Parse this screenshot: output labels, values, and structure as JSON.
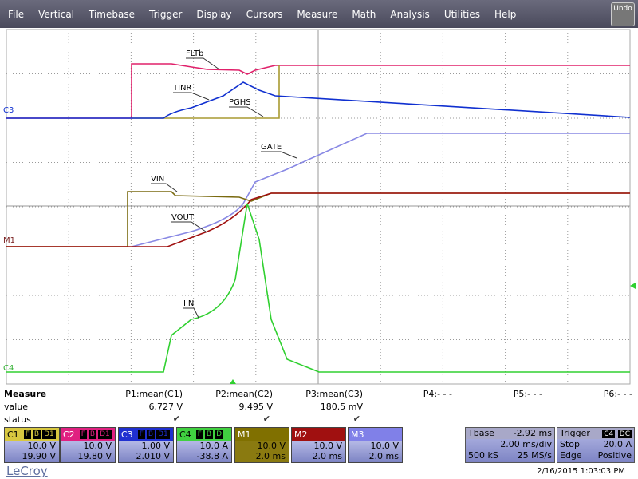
{
  "menu": {
    "items": [
      "File",
      "Vertical",
      "Timebase",
      "Trigger",
      "Display",
      "Cursors",
      "Measure",
      "Math",
      "Analysis",
      "Utilities",
      "Help"
    ],
    "undo": "Undo"
  },
  "scope": {
    "trace_labels": [
      "FLTb",
      "TINR",
      "PGHS",
      "GATE",
      "VIN",
      "VOUT",
      "IIN"
    ],
    "channel_markers": [
      "C3",
      "M1",
      "C4"
    ]
  },
  "measure": {
    "title": "Measure",
    "row_labels": [
      "value",
      "status"
    ],
    "parameters": [
      {
        "name": "P1:mean(C1)",
        "value": "6.727 V",
        "status": "✔"
      },
      {
        "name": "P2:mean(C2)",
        "value": "9.495 V",
        "status": "✔"
      },
      {
        "name": "P3:mean(C3)",
        "value": "180.5 mV",
        "status": "✔"
      },
      {
        "name": "P4:- - -"
      },
      {
        "name": "P5:- - -"
      },
      {
        "name": "P6:- - -"
      }
    ]
  },
  "channels": [
    {
      "label": "C1",
      "badges": [
        "F",
        "B",
        "D1"
      ],
      "lines": [
        "10.0 V",
        "19.90 V"
      ]
    },
    {
      "label": "C2",
      "badges": [
        "F",
        "B",
        "D1"
      ],
      "lines": [
        "10.0 V",
        "19.80 V"
      ]
    },
    {
      "label": "C3",
      "badges": [
        "F",
        "B",
        "D1"
      ],
      "lines": [
        "1.00 V",
        "2.010 V"
      ]
    },
    {
      "label": "C4",
      "badges": [
        "F",
        "B",
        "D"
      ],
      "lines": [
        "10.0 A",
        "-38.8 A"
      ]
    },
    {
      "label": "M1",
      "lines": [
        "10.0 V",
        "2.0 ms"
      ]
    },
    {
      "label": "M2",
      "lines": [
        "10.0 V",
        "2.0 ms"
      ]
    },
    {
      "label": "M3",
      "lines": [
        "10.0 V",
        "2.0 ms"
      ]
    }
  ],
  "timebase": {
    "title": "Tbase",
    "delay": "-2.92 ms",
    "scale": "2.00 ms/div",
    "samples": "500 kS",
    "rate": "25 MS/s"
  },
  "trigger": {
    "title": "Trigger",
    "source": "C4",
    "coupling": "DC",
    "mode": "Stop",
    "level": "20.0 A",
    "type": "Edge",
    "slope": "Positive"
  },
  "footer": {
    "brand": "LeCroy",
    "timestamp": "2/16/2015 1:03:03 PM"
  }
}
